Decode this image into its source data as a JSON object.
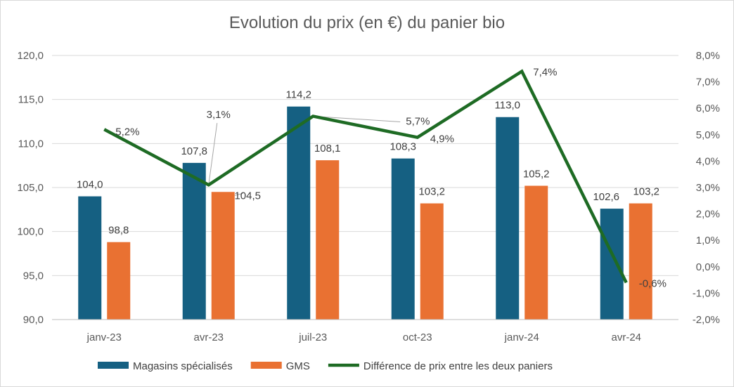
{
  "chart_data": {
    "type": "bar",
    "title": "Evolution du prix (en €) du panier bio",
    "categories": [
      "janv-23",
      "avr-23",
      "juil-23",
      "oct-23",
      "janv-24",
      "avr-24"
    ],
    "y_left": {
      "min": 90,
      "max": 120,
      "step": 5,
      "tick_labels": [
        "90,0",
        "95,0",
        "100,0",
        "105,0",
        "110,0",
        "115,0",
        "120,0"
      ]
    },
    "y_right": {
      "min": -2,
      "max": 8,
      "step": 1,
      "tick_labels": [
        "-2,0%",
        "-1,0%",
        "0,0%",
        "1,0%",
        "2,0%",
        "3,0%",
        "4,0%",
        "5,0%",
        "6,0%",
        "7,0%",
        "8,0%"
      ]
    },
    "series": [
      {
        "name": "Magasins spécialisés",
        "type": "bar",
        "axis": "left",
        "color": "#156082",
        "values": [
          104.0,
          107.8,
          114.2,
          108.3,
          113.0,
          102.6
        ],
        "labels": [
          "104,0",
          "107,8",
          "114,2",
          "108,3",
          "113,0",
          "102,6"
        ]
      },
      {
        "name": "GMS",
        "type": "bar",
        "axis": "left",
        "color": "#E97132",
        "values": [
          98.8,
          104.5,
          108.1,
          103.2,
          105.2,
          103.2
        ],
        "labels": [
          "98,8",
          "104,5",
          "108,1",
          "103,2",
          "105,2",
          "103,2"
        ]
      },
      {
        "name": "Différence de prix entre les deux paniers",
        "type": "line",
        "axis": "right",
        "color": "#1E6B24",
        "values": [
          5.2,
          3.1,
          5.7,
          4.9,
          7.4,
          -0.6
        ],
        "labels": [
          "5,2%",
          "3,1%",
          "5,7%",
          "4,9%",
          "7,4%",
          "-0,6%"
        ]
      }
    ],
    "grid": true,
    "legend": "bottom"
  }
}
